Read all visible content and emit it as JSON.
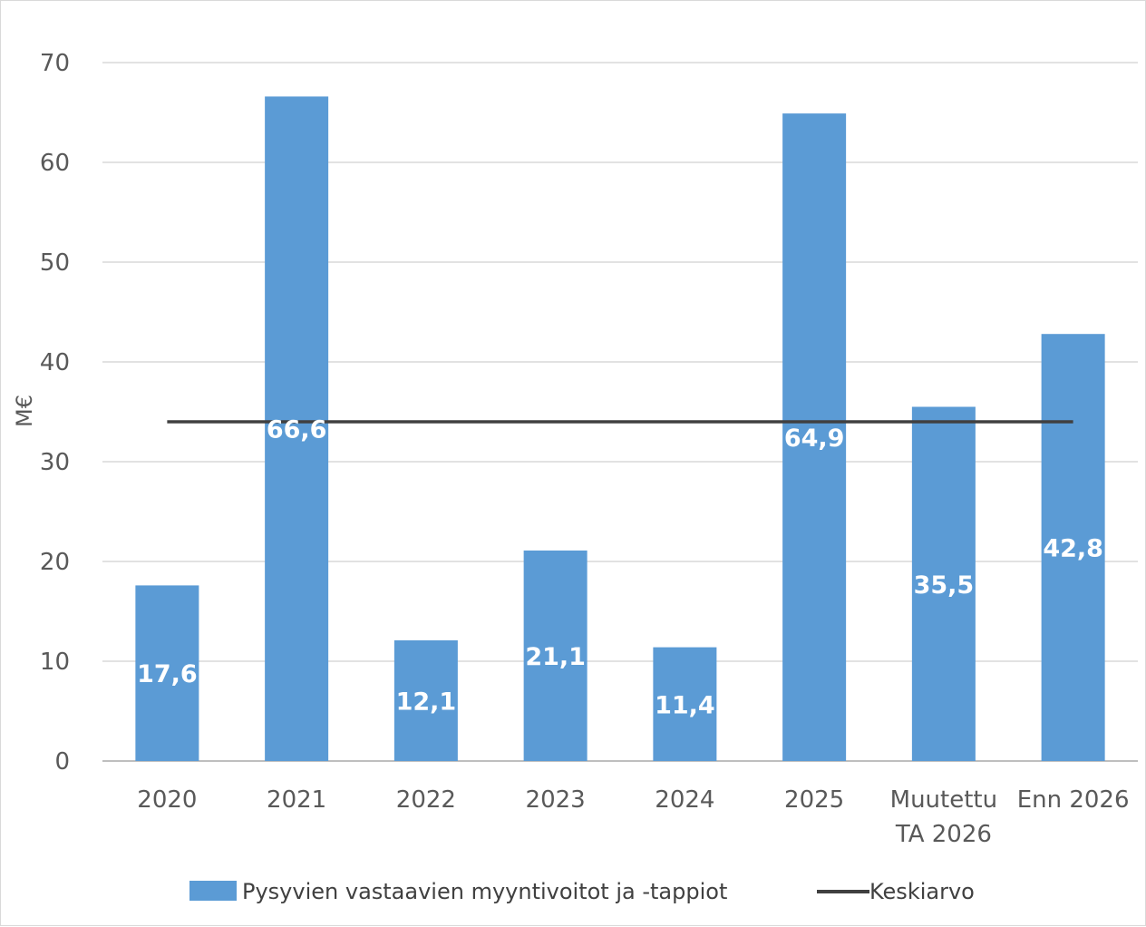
{
  "chart_data": {
    "type": "bar",
    "categories": [
      "2020",
      "2021",
      "2022",
      "2023",
      "2024",
      "2025",
      "Muutettu TA 2026",
      "Enn 2026"
    ],
    "category_lines": [
      [
        "2020"
      ],
      [
        "2021"
      ],
      [
        "2022"
      ],
      [
        "2023"
      ],
      [
        "2024"
      ],
      [
        "2025"
      ],
      [
        "Muutettu",
        "TA 2026"
      ],
      [
        "Enn 2026"
      ]
    ],
    "series": [
      {
        "name": "Pysyvien vastaavien myyntivoitot ja -tappiot",
        "type": "bar",
        "values": [
          17.6,
          66.6,
          12.1,
          21.1,
          11.4,
          64.9,
          35.5,
          42.8
        ],
        "labels": [
          "17,6",
          "66,6",
          "12,1",
          "21,1",
          "11,4",
          "64,9",
          "35,5",
          "42,8"
        ],
        "color": "#5b9bd5"
      },
      {
        "name": "Keskiarvo",
        "type": "line",
        "value": 34,
        "color": "#404040"
      }
    ],
    "ylabel": "M€",
    "ylim": [
      0,
      70
    ],
    "yticks": [
      0,
      10,
      20,
      30,
      40,
      50,
      60,
      70
    ],
    "grid": true,
    "legend": "bottom"
  }
}
